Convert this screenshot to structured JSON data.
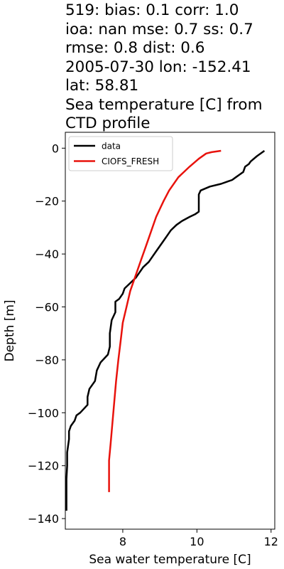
{
  "chart_data": {
    "type": "line",
    "title_lines": [
      "519: bias: 0.1  corr: 1.0",
      "ioa: nan  mse: 0.7  ss: 0.7",
      "rmse: 0.8  dist: 0.6",
      "2005-07-30 lon: -152.41",
      "lat: 58.81",
      "Sea temperature [C] from",
      "CTD profile"
    ],
    "xlabel": "Sea water temperature [C]",
    "ylabel": "Depth [m]",
    "xlim": [
      6.45,
      12.1
    ],
    "ylim": [
      -144,
      6
    ],
    "xticks": [
      8,
      10,
      12
    ],
    "yticks": [
      0,
      -20,
      -40,
      -60,
      -80,
      -100,
      -120,
      -140
    ],
    "grid": false,
    "legend_position": "top-left",
    "series": [
      {
        "name": "data",
        "color": "#000000",
        "points": [
          [
            11.82,
            -1
          ],
          [
            11.62,
            -3
          ],
          [
            11.45,
            -5
          ],
          [
            11.4,
            -6
          ],
          [
            11.3,
            -7
          ],
          [
            11.25,
            -9
          ],
          [
            11.15,
            -10
          ],
          [
            11.05,
            -11
          ],
          [
            10.95,
            -12
          ],
          [
            10.85,
            -12.5
          ],
          [
            10.65,
            -13.5
          ],
          [
            10.35,
            -14.5
          ],
          [
            10.1,
            -16
          ],
          [
            10.05,
            -17.5
          ],
          [
            10.05,
            -20
          ],
          [
            10.05,
            -24
          ],
          [
            9.95,
            -25
          ],
          [
            9.8,
            -26
          ],
          [
            9.6,
            -27.5
          ],
          [
            9.45,
            -29
          ],
          [
            9.3,
            -31
          ],
          [
            9.2,
            -33
          ],
          [
            9.1,
            -35
          ],
          [
            9.0,
            -37
          ],
          [
            8.9,
            -39
          ],
          [
            8.8,
            -41
          ],
          [
            8.7,
            -43
          ],
          [
            8.55,
            -45
          ],
          [
            8.45,
            -47
          ],
          [
            8.35,
            -49
          ],
          [
            8.2,
            -51
          ],
          [
            8.05,
            -53
          ],
          [
            8.0,
            -55
          ],
          [
            7.9,
            -57
          ],
          [
            7.8,
            -58
          ],
          [
            7.8,
            -62
          ],
          [
            7.7,
            -65
          ],
          [
            7.65,
            -70
          ],
          [
            7.65,
            -75
          ],
          [
            7.6,
            -78
          ],
          [
            7.4,
            -81
          ],
          [
            7.3,
            -84
          ],
          [
            7.25,
            -88
          ],
          [
            7.1,
            -91
          ],
          [
            7.05,
            -94
          ],
          [
            7.05,
            -97
          ],
          [
            6.85,
            -100
          ],
          [
            6.75,
            -101
          ],
          [
            6.7,
            -103
          ],
          [
            6.6,
            -105
          ],
          [
            6.55,
            -107
          ],
          [
            6.55,
            -110
          ],
          [
            6.5,
            -115
          ],
          [
            6.5,
            -120
          ],
          [
            6.48,
            -125
          ],
          [
            6.48,
            -130
          ],
          [
            6.48,
            -137
          ]
        ]
      },
      {
        "name": "CIOFS_FRESH",
        "color": "#e8120c",
        "points": [
          [
            10.65,
            -1
          ],
          [
            10.4,
            -1.5
          ],
          [
            10.25,
            -2
          ],
          [
            10.05,
            -4
          ],
          [
            9.8,
            -7
          ],
          [
            9.5,
            -11
          ],
          [
            9.25,
            -16
          ],
          [
            9.1,
            -20
          ],
          [
            9.0,
            -23
          ],
          [
            8.9,
            -26
          ],
          [
            8.8,
            -30
          ],
          [
            8.7,
            -34
          ],
          [
            8.6,
            -38
          ],
          [
            8.5,
            -42
          ],
          [
            8.4,
            -46
          ],
          [
            8.3,
            -50
          ],
          [
            8.2,
            -54
          ],
          [
            8.1,
            -60
          ],
          [
            8.0,
            -66
          ],
          [
            7.95,
            -72
          ],
          [
            7.88,
            -80
          ],
          [
            7.82,
            -88
          ],
          [
            7.77,
            -96
          ],
          [
            7.72,
            -104
          ],
          [
            7.67,
            -112
          ],
          [
            7.63,
            -118
          ],
          [
            7.63,
            -130
          ]
        ]
      }
    ]
  }
}
